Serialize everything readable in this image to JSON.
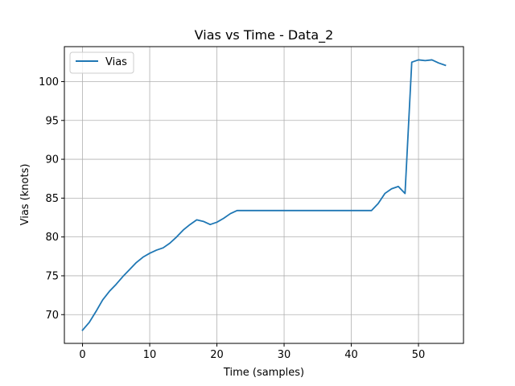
{
  "chart_data": {
    "type": "line",
    "title": "Vias vs Time - Data_2",
    "xlabel": "Time (samples)",
    "ylabel": "Vias (knots)",
    "xlim": [
      -2.7,
      56.7
    ],
    "ylim": [
      66.3,
      104.5
    ],
    "xticks": [
      0,
      10,
      20,
      30,
      40,
      50
    ],
    "yticks": [
      70,
      75,
      80,
      85,
      90,
      95,
      100
    ],
    "grid": true,
    "legend_position": "top-left",
    "series": [
      {
        "name": "Vias",
        "color": "#1f77b4",
        "x": [
          0,
          1,
          2,
          3,
          4,
          5,
          6,
          7,
          8,
          9,
          10,
          11,
          12,
          13,
          14,
          15,
          16,
          17,
          18,
          19,
          20,
          21,
          22,
          23,
          24,
          25,
          26,
          27,
          28,
          29,
          30,
          31,
          32,
          33,
          34,
          35,
          36,
          37,
          38,
          39,
          40,
          41,
          42,
          43,
          44,
          45,
          46,
          47,
          48,
          49,
          50,
          51,
          52,
          53,
          54
        ],
        "y": [
          68.0,
          69.0,
          70.4,
          71.9,
          73.0,
          73.9,
          74.9,
          75.8,
          76.7,
          77.4,
          77.9,
          78.3,
          78.6,
          79.2,
          80.0,
          80.9,
          81.6,
          82.2,
          82.0,
          81.6,
          81.9,
          82.4,
          83.0,
          83.4,
          83.4,
          83.4,
          83.4,
          83.4,
          83.4,
          83.4,
          83.4,
          83.4,
          83.4,
          83.4,
          83.4,
          83.4,
          83.4,
          83.4,
          83.4,
          83.4,
          83.4,
          83.4,
          83.4,
          83.4,
          84.3,
          85.6,
          86.2,
          86.5,
          85.6,
          102.5,
          102.8,
          102.7,
          102.8,
          102.4,
          102.1
        ]
      }
    ]
  }
}
